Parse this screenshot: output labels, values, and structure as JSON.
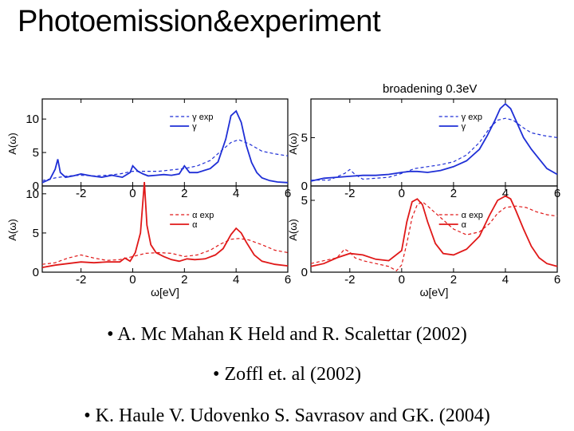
{
  "slide": {
    "title": "Photoemission&experiment",
    "broadening_label": "broadening 0.3eV",
    "references": [
      "• A. Mc Mahan K Held and R. Scalettar (2002)",
      "• Zoffl et. al (2002)",
      "• K. Haule V. Udovenko S. Savrasov and GK. (2004)"
    ]
  },
  "colors": {
    "gamma": "#1f2fd6",
    "alpha": "#e01818",
    "axis": "#000000"
  },
  "chart_data": [
    {
      "type": "line",
      "title": "",
      "xlabel": "",
      "ylabel": "A(ω)",
      "xlim": [
        -3.5,
        6
      ],
      "ylim": [
        0,
        13
      ],
      "xticks": [
        "-2",
        "0",
        "2",
        "4",
        "6"
      ],
      "yticks": [
        "0",
        "5",
        "10"
      ],
      "legend": [
        "γ exp",
        "γ"
      ],
      "legend_position": "top-right",
      "series": [
        {
          "name": "γ",
          "style": "solid",
          "color": "#1f2fd6",
          "x": [
            -3.5,
            -3.2,
            -3.0,
            -2.9,
            -2.8,
            -2.6,
            -2.3,
            -2.0,
            -1.6,
            -1.2,
            -0.8,
            -0.4,
            -0.1,
            0.0,
            0.2,
            0.4,
            0.6,
            0.9,
            1.2,
            1.5,
            1.8,
            2.0,
            2.2,
            2.5,
            3.0,
            3.3,
            3.6,
            3.8,
            4.0,
            4.2,
            4.4,
            4.6,
            4.8,
            5.0,
            5.3,
            5.6,
            6.0
          ],
          "y": [
            0.5,
            1.0,
            2.5,
            4.0,
            2.0,
            1.3,
            1.5,
            1.8,
            1.5,
            1.3,
            1.6,
            1.3,
            2.0,
            3.0,
            2.2,
            1.8,
            1.5,
            1.6,
            1.7,
            1.6,
            1.8,
            3.0,
            2.0,
            2.0,
            2.6,
            3.6,
            7.0,
            10.5,
            11.2,
            9.5,
            6.0,
            3.5,
            2.0,
            1.2,
            0.8,
            0.6,
            0.5
          ]
        },
        {
          "name": "γ exp",
          "style": "dashed",
          "color": "#1f2fd6",
          "x": [
            -3.5,
            -3.0,
            -2.5,
            -2.0,
            -1.5,
            -1.0,
            -0.5,
            0.0,
            0.5,
            1.0,
            1.5,
            2.0,
            2.5,
            3.0,
            3.5,
            3.8,
            4.1,
            4.5,
            5.0,
            5.5,
            6.0
          ],
          "y": [
            0.8,
            1.2,
            1.5,
            1.6,
            1.5,
            1.6,
            1.8,
            2.2,
            2.2,
            2.2,
            2.4,
            2.6,
            3.0,
            3.8,
            5.5,
            6.5,
            6.9,
            6.3,
            5.2,
            4.8,
            4.5
          ]
        }
      ]
    },
    {
      "type": "line",
      "title": "broadening 0.3eV",
      "xlabel": "",
      "ylabel": "A(ω)",
      "xlim": [
        -3.5,
        6
      ],
      "ylim": [
        0,
        9
      ],
      "xticks": [
        "-2",
        "0",
        "2",
        "4",
        "6"
      ],
      "yticks": [
        "0",
        "5"
      ],
      "legend": [
        "γ exp",
        "γ"
      ],
      "legend_position": "top-right",
      "series": [
        {
          "name": "γ",
          "style": "solid",
          "color": "#1f2fd6",
          "x": [
            -3.5,
            -3.0,
            -2.5,
            -2.0,
            -1.5,
            -1.0,
            -0.5,
            0.0,
            0.3,
            0.6,
            1.0,
            1.5,
            2.0,
            2.5,
            3.0,
            3.3,
            3.6,
            3.8,
            4.0,
            4.2,
            4.4,
            4.7,
            5.0,
            5.3,
            5.6,
            6.0
          ],
          "y": [
            0.5,
            0.8,
            0.9,
            1.0,
            1.1,
            1.1,
            1.2,
            1.4,
            1.5,
            1.5,
            1.4,
            1.6,
            2.0,
            2.6,
            3.8,
            5.2,
            6.8,
            8.0,
            8.5,
            8.0,
            6.8,
            5.0,
            3.8,
            2.8,
            1.8,
            1.2
          ]
        },
        {
          "name": "γ exp",
          "style": "dashed",
          "color": "#1f2fd6",
          "x": [
            -3.5,
            -2.8,
            -2.2,
            -2.0,
            -1.8,
            -1.5,
            -1.0,
            -0.5,
            0.0,
            0.5,
            1.0,
            1.5,
            2.0,
            2.5,
            3.0,
            3.4,
            3.7,
            4.0,
            4.3,
            4.7,
            5.0,
            5.5,
            6.0
          ],
          "y": [
            0.6,
            0.6,
            1.3,
            1.7,
            1.2,
            0.7,
            0.8,
            0.9,
            1.3,
            1.8,
            2.0,
            2.2,
            2.5,
            3.2,
            4.5,
            6.0,
            6.8,
            7.0,
            6.8,
            6.0,
            5.5,
            5.2,
            5.0
          ]
        }
      ]
    },
    {
      "type": "line",
      "title": "",
      "xlabel": "ω[eV]",
      "ylabel": "A(ω)",
      "xlim": [
        -3.5,
        6
      ],
      "ylim": [
        0,
        11
      ],
      "xticks": [
        "-2",
        "0",
        "2",
        "4",
        "6"
      ],
      "yticks": [
        "0",
        "5",
        "10"
      ],
      "legend": [
        "α exp",
        "α"
      ],
      "legend_position": "top-right",
      "series": [
        {
          "name": "α",
          "style": "solid",
          "color": "#e01818",
          "x": [
            -3.5,
            -3.0,
            -2.5,
            -2.0,
            -1.5,
            -1.0,
            -0.5,
            -0.3,
            -0.1,
            0.1,
            0.3,
            0.45,
            0.55,
            0.7,
            0.9,
            1.2,
            1.5,
            1.8,
            2.1,
            2.4,
            2.8,
            3.2,
            3.5,
            3.8,
            4.0,
            4.2,
            4.4,
            4.7,
            5.0,
            5.5,
            6.0
          ],
          "y": [
            0.6,
            0.9,
            1.1,
            1.3,
            1.2,
            1.3,
            1.3,
            1.8,
            1.4,
            2.5,
            5.0,
            11.5,
            6.0,
            3.5,
            2.5,
            2.0,
            1.6,
            1.4,
            1.7,
            1.6,
            1.7,
            2.2,
            3.0,
            4.8,
            5.6,
            5.0,
            3.8,
            2.2,
            1.4,
            1.0,
            0.8
          ]
        },
        {
          "name": "α exp",
          "style": "dashed",
          "color": "#e01818",
          "x": [
            -3.5,
            -3.0,
            -2.5,
            -2.0,
            -1.5,
            -1.0,
            -0.5,
            0.0,
            0.5,
            1.0,
            1.5,
            2.0,
            2.5,
            3.0,
            3.4,
            3.8,
            4.1,
            4.5,
            5.0,
            5.5,
            6.0
          ],
          "y": [
            1.0,
            1.2,
            1.8,
            2.2,
            1.8,
            1.5,
            1.6,
            2.0,
            2.4,
            2.5,
            2.4,
            2.0,
            2.2,
            2.8,
            3.6,
            4.2,
            4.3,
            4.1,
            3.5,
            2.8,
            2.5
          ]
        }
      ]
    },
    {
      "type": "line",
      "title": "",
      "xlabel": "ω[eV]",
      "ylabel": "A(ω)",
      "xlim": [
        -3.5,
        6
      ],
      "ylim": [
        0,
        6
      ],
      "xticks": [
        "-2",
        "0",
        "2",
        "4",
        "6"
      ],
      "yticks": [
        "0",
        "5"
      ],
      "legend": [
        "α exp",
        "α"
      ],
      "legend_position": "top-right",
      "series": [
        {
          "name": "α",
          "style": "solid",
          "color": "#e01818",
          "x": [
            -3.5,
            -3.0,
            -2.5,
            -2.0,
            -1.5,
            -1.0,
            -0.5,
            0.0,
            0.2,
            0.4,
            0.6,
            0.8,
            1.0,
            1.3,
            1.6,
            2.0,
            2.5,
            3.0,
            3.4,
            3.7,
            4.0,
            4.2,
            4.4,
            4.7,
            5.0,
            5.3,
            5.6,
            6.0
          ],
          "y": [
            0.4,
            0.6,
            1.0,
            1.3,
            1.2,
            0.9,
            0.8,
            1.5,
            3.5,
            4.9,
            5.1,
            4.7,
            3.5,
            2.0,
            1.3,
            1.2,
            1.6,
            2.5,
            4.0,
            5.0,
            5.3,
            5.1,
            4.3,
            3.0,
            1.8,
            1.0,
            0.6,
            0.4
          ]
        },
        {
          "name": "α exp",
          "style": "dashed",
          "color": "#e01818",
          "x": [
            -3.5,
            -3.0,
            -2.5,
            -2.2,
            -2.0,
            -1.8,
            -1.5,
            -1.0,
            -0.5,
            -0.2,
            0.0,
            0.2,
            0.4,
            0.6,
            0.8,
            1.0,
            1.5,
            2.0,
            2.5,
            3.0,
            3.4,
            3.7,
            4.0,
            4.4,
            4.8,
            5.2,
            5.6,
            6.0
          ],
          "y": [
            0.6,
            0.8,
            1.0,
            1.6,
            1.4,
            1.0,
            0.8,
            0.6,
            0.4,
            0.1,
            0.5,
            2.0,
            3.8,
            4.7,
            4.9,
            4.6,
            3.8,
            3.0,
            2.6,
            2.8,
            3.4,
            4.1,
            4.5,
            4.6,
            4.5,
            4.2,
            4.0,
            3.9
          ]
        }
      ]
    }
  ]
}
